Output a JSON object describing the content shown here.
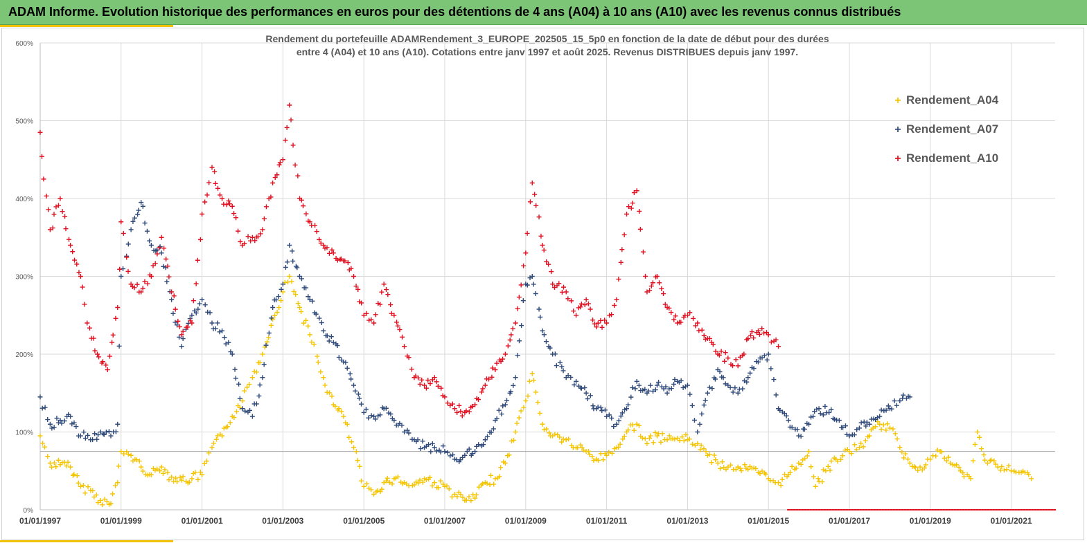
{
  "banner": {
    "title": "ADAM Informe. Evolution historique des performances en euros pour des détentions de 4 ans (A04) à 10 ans (A10) avec les revenus connus distribués"
  },
  "colors": {
    "banner": "#7cc576",
    "accent": "#f2c200",
    "A04": "#f5c400",
    "A07": "#2f4a7a",
    "A10": "#e01020",
    "grid": "#d9d9d9"
  },
  "chart_data": {
    "type": "scatter",
    "title_lines": [
      "Rendement du portefeuille ADAMRendement_3_EUROPE_202505_15_5p0  en fonction de la date de début pour des durées",
      "entre 4 (A04) et 10 ans (A10). Cotations entre janv 1997 et août 2025. Revenus DISTRIBUES depuis janv 1997."
    ],
    "xlabel": "",
    "ylabel": "",
    "x_range": [
      "1997-01-01",
      "2022-02-01"
    ],
    "ylim": [
      0,
      600
    ],
    "y_ticks": [
      "0%",
      "100%",
      "200%",
      "300%",
      "400%",
      "500%",
      "600%"
    ],
    "x_ticks": [
      "01/01/1997",
      "01/01/1999",
      "01/01/2001",
      "01/01/2003",
      "01/01/2005",
      "01/01/2007",
      "01/01/2009",
      "01/01/2011",
      "01/01/2013",
      "01/01/2015",
      "01/01/2017",
      "01/01/2019",
      "01/01/2021"
    ],
    "grid": true,
    "legend_position": "top-right",
    "marker": "+",
    "reference_line_y": 75,
    "series": [
      {
        "name": "Rendement_A04",
        "color": "#f5c400",
        "points": [
          [
            "1997-01-01",
            95
          ],
          [
            "1997-04-01",
            60
          ],
          [
            "1997-07-01",
            58
          ],
          [
            "1997-10-01",
            55
          ],
          [
            "1998-01-01",
            30
          ],
          [
            "1998-04-01",
            25
          ],
          [
            "1998-07-01",
            12
          ],
          [
            "1998-10-01",
            8
          ],
          [
            "1998-12-01",
            35
          ],
          [
            "1999-01-01",
            75
          ],
          [
            "1999-04-01",
            70
          ],
          [
            "1999-07-01",
            55
          ],
          [
            "1999-10-01",
            45
          ],
          [
            "2000-01-01",
            55
          ],
          [
            "2000-04-01",
            42
          ],
          [
            "2000-07-01",
            38
          ],
          [
            "2000-10-01",
            40
          ],
          [
            "2001-01-01",
            45
          ],
          [
            "2001-04-01",
            80
          ],
          [
            "2001-07-01",
            95
          ],
          [
            "2001-10-01",
            120
          ],
          [
            "2002-01-01",
            140
          ],
          [
            "2002-04-01",
            170
          ],
          [
            "2002-07-01",
            200
          ],
          [
            "2002-10-01",
            245
          ],
          [
            "2003-01-01",
            280
          ],
          [
            "2003-03-01",
            300
          ],
          [
            "2003-06-01",
            260
          ],
          [
            "2003-09-01",
            225
          ],
          [
            "2004-01-01",
            170
          ],
          [
            "2004-04-01",
            135
          ],
          [
            "2004-07-01",
            120
          ],
          [
            "2004-10-01",
            80
          ],
          [
            "2005-01-01",
            30
          ],
          [
            "2005-04-01",
            20
          ],
          [
            "2005-07-01",
            35
          ],
          [
            "2005-10-01",
            40
          ],
          [
            "2006-01-01",
            35
          ],
          [
            "2006-04-01",
            32
          ],
          [
            "2006-07-01",
            40
          ],
          [
            "2006-10-01",
            35
          ],
          [
            "2007-01-01",
            30
          ],
          [
            "2007-04-01",
            20
          ],
          [
            "2007-07-01",
            12
          ],
          [
            "2007-10-01",
            15
          ],
          [
            "2008-01-01",
            35
          ],
          [
            "2008-04-01",
            40
          ],
          [
            "2008-07-01",
            60
          ],
          [
            "2008-10-01",
            100
          ],
          [
            "2009-01-01",
            140
          ],
          [
            "2009-03-01",
            175
          ],
          [
            "2009-06-01",
            110
          ],
          [
            "2009-09-01",
            95
          ],
          [
            "2010-01-01",
            90
          ],
          [
            "2010-04-01",
            80
          ],
          [
            "2010-07-01",
            75
          ],
          [
            "2010-10-01",
            65
          ],
          [
            "2011-01-01",
            70
          ],
          [
            "2011-04-01",
            80
          ],
          [
            "2011-07-01",
            100
          ],
          [
            "2011-10-01",
            110
          ],
          [
            "2012-01-01",
            85
          ],
          [
            "2012-04-01",
            95
          ],
          [
            "2012-07-01",
            90
          ],
          [
            "2012-10-01",
            92
          ],
          [
            "2013-01-01",
            90
          ],
          [
            "2013-04-01",
            85
          ],
          [
            "2013-07-01",
            70
          ],
          [
            "2013-10-01",
            60
          ],
          [
            "2014-01-01",
            55
          ],
          [
            "2014-04-01",
            55
          ],
          [
            "2014-07-01",
            52
          ],
          [
            "2014-10-01",
            48
          ],
          [
            "2015-01-01",
            40
          ],
          [
            "2015-04-01",
            35
          ],
          [
            "2015-07-01",
            45
          ],
          [
            "2015-10-01",
            60
          ],
          [
            "2016-01-01",
            75
          ],
          [
            "2016-03-01",
            30
          ],
          [
            "2016-06-01",
            50
          ],
          [
            "2016-09-01",
            65
          ],
          [
            "2017-01-01",
            75
          ],
          [
            "2017-04-01",
            80
          ],
          [
            "2017-07-01",
            95
          ],
          [
            "2017-10-01",
            110
          ],
          [
            "2018-01-01",
            105
          ],
          [
            "2018-04-01",
            80
          ],
          [
            "2018-07-01",
            60
          ],
          [
            "2018-10-01",
            55
          ],
          [
            "2019-01-01",
            65
          ],
          [
            "2019-04-01",
            75
          ],
          [
            "2019-07-01",
            60
          ],
          [
            "2019-10-01",
            50
          ],
          [
            "2020-01-01",
            40
          ],
          [
            "2020-03-01",
            100
          ],
          [
            "2020-06-01",
            60
          ],
          [
            "2020-09-01",
            55
          ],
          [
            "2021-01-01",
            50
          ],
          [
            "2021-04-01",
            48
          ],
          [
            "2021-07-01",
            40
          ]
        ]
      },
      {
        "name": "Rendement_A07",
        "color": "#2f4a7a",
        "points": [
          [
            "1997-01-01",
            145
          ],
          [
            "1997-04-01",
            110
          ],
          [
            "1997-07-01",
            115
          ],
          [
            "1997-10-01",
            120
          ],
          [
            "1998-01-01",
            95
          ],
          [
            "1998-04-01",
            90
          ],
          [
            "1998-07-01",
            100
          ],
          [
            "1998-10-01",
            95
          ],
          [
            "1998-12-01",
            110
          ],
          [
            "1999-01-01",
            300
          ],
          [
            "1999-04-01",
            360
          ],
          [
            "1999-07-01",
            395
          ],
          [
            "1999-10-01",
            340
          ],
          [
            "2000-01-01",
            330
          ],
          [
            "2000-04-01",
            270
          ],
          [
            "2000-07-01",
            210
          ],
          [
            "2000-10-01",
            250
          ],
          [
            "2001-01-01",
            270
          ],
          [
            "2001-04-01",
            240
          ],
          [
            "2001-07-01",
            230
          ],
          [
            "2001-10-01",
            200
          ],
          [
            "2002-01-01",
            130
          ],
          [
            "2002-04-01",
            120
          ],
          [
            "2002-07-01",
            170
          ],
          [
            "2002-10-01",
            260
          ],
          [
            "2003-01-01",
            290
          ],
          [
            "2003-03-01",
            340
          ],
          [
            "2003-06-01",
            300
          ],
          [
            "2003-09-01",
            270
          ],
          [
            "2004-01-01",
            230
          ],
          [
            "2004-04-01",
            215
          ],
          [
            "2004-07-01",
            190
          ],
          [
            "2004-10-01",
            160
          ],
          [
            "2005-01-01",
            125
          ],
          [
            "2005-04-01",
            120
          ],
          [
            "2005-07-01",
            130
          ],
          [
            "2005-10-01",
            115
          ],
          [
            "2006-01-01",
            100
          ],
          [
            "2006-04-01",
            90
          ],
          [
            "2006-07-01",
            80
          ],
          [
            "2006-10-01",
            80
          ],
          [
            "2007-01-01",
            75
          ],
          [
            "2007-04-01",
            65
          ],
          [
            "2007-07-01",
            70
          ],
          [
            "2007-10-01",
            75
          ],
          [
            "2008-01-01",
            90
          ],
          [
            "2008-04-01",
            115
          ],
          [
            "2008-07-01",
            135
          ],
          [
            "2008-10-01",
            170
          ],
          [
            "2009-01-01",
            290
          ],
          [
            "2009-03-01",
            300
          ],
          [
            "2009-06-01",
            230
          ],
          [
            "2009-09-01",
            200
          ],
          [
            "2010-01-01",
            170
          ],
          [
            "2010-04-01",
            165
          ],
          [
            "2010-07-01",
            150
          ],
          [
            "2010-10-01",
            130
          ],
          [
            "2011-01-01",
            120
          ],
          [
            "2011-04-01",
            110
          ],
          [
            "2011-07-01",
            130
          ],
          [
            "2011-10-01",
            165
          ],
          [
            "2012-01-01",
            150
          ],
          [
            "2012-04-01",
            160
          ],
          [
            "2012-07-01",
            150
          ],
          [
            "2012-10-01",
            165
          ],
          [
            "2013-01-01",
            160
          ],
          [
            "2013-04-01",
            100
          ],
          [
            "2013-07-01",
            150
          ],
          [
            "2013-10-01",
            180
          ],
          [
            "2014-01-01",
            160
          ],
          [
            "2014-04-01",
            150
          ],
          [
            "2014-07-01",
            170
          ],
          [
            "2014-10-01",
            190
          ],
          [
            "2015-01-01",
            200
          ],
          [
            "2015-04-01",
            130
          ],
          [
            "2015-07-01",
            115
          ],
          [
            "2015-10-01",
            95
          ],
          [
            "2016-01-01",
            110
          ],
          [
            "2016-04-01",
            130
          ],
          [
            "2016-07-01",
            125
          ],
          [
            "2016-10-01",
            115
          ],
          [
            "2017-01-01",
            95
          ],
          [
            "2017-04-01",
            105
          ],
          [
            "2017-07-01",
            110
          ],
          [
            "2017-10-01",
            120
          ],
          [
            "2018-01-01",
            130
          ],
          [
            "2018-04-01",
            140
          ],
          [
            "2018-07-01",
            145
          ]
        ]
      },
      {
        "name": "Rendement_A10",
        "color": "#e01020",
        "points": [
          [
            "1997-01-01",
            485
          ],
          [
            "1997-02-01",
            425
          ],
          [
            "1997-04-01",
            360
          ],
          [
            "1997-07-01",
            400
          ],
          [
            "1997-10-01",
            340
          ],
          [
            "1998-01-01",
            300
          ],
          [
            "1998-03-01",
            240
          ],
          [
            "1998-06-01",
            200
          ],
          [
            "1998-09-01",
            180
          ],
          [
            "1998-12-01",
            260
          ],
          [
            "1999-01-01",
            370
          ],
          [
            "1999-04-01",
            290
          ],
          [
            "1999-07-01",
            280
          ],
          [
            "1999-10-01",
            300
          ],
          [
            "2000-01-01",
            350
          ],
          [
            "2000-04-01",
            280
          ],
          [
            "2000-07-01",
            225
          ],
          [
            "2000-10-01",
            240
          ],
          [
            "2001-01-01",
            380
          ],
          [
            "2001-04-01",
            440
          ],
          [
            "2001-07-01",
            400
          ],
          [
            "2001-10-01",
            390
          ],
          [
            "2002-01-01",
            340
          ],
          [
            "2002-04-01",
            350
          ],
          [
            "2002-07-01",
            360
          ],
          [
            "2002-10-01",
            420
          ],
          [
            "2003-01-01",
            450
          ],
          [
            "2003-03-01",
            520
          ],
          [
            "2003-06-01",
            400
          ],
          [
            "2003-09-01",
            370
          ],
          [
            "2004-01-01",
            340
          ],
          [
            "2004-04-01",
            330
          ],
          [
            "2004-07-01",
            320
          ],
          [
            "2004-10-01",
            300
          ],
          [
            "2005-01-01",
            250
          ],
          [
            "2005-04-01",
            240
          ],
          [
            "2005-07-01",
            290
          ],
          [
            "2005-10-01",
            250
          ],
          [
            "2006-01-01",
            210
          ],
          [
            "2006-04-01",
            170
          ],
          [
            "2006-07-01",
            160
          ],
          [
            "2006-10-01",
            170
          ],
          [
            "2007-01-01",
            145
          ],
          [
            "2007-04-01",
            130
          ],
          [
            "2007-07-01",
            125
          ],
          [
            "2007-10-01",
            135
          ],
          [
            "2008-01-01",
            160
          ],
          [
            "2008-04-01",
            180
          ],
          [
            "2008-07-01",
            200
          ],
          [
            "2008-10-01",
            240
          ],
          [
            "2009-01-01",
            330
          ],
          [
            "2009-03-01",
            420
          ],
          [
            "2009-06-01",
            340
          ],
          [
            "2009-09-01",
            290
          ],
          [
            "2010-01-01",
            280
          ],
          [
            "2010-04-01",
            250
          ],
          [
            "2010-07-01",
            270
          ],
          [
            "2010-10-01",
            235
          ],
          [
            "2011-01-01",
            240
          ],
          [
            "2011-04-01",
            270
          ],
          [
            "2011-07-01",
            380
          ],
          [
            "2011-10-01",
            410
          ],
          [
            "2012-01-01",
            280
          ],
          [
            "2012-04-01",
            300
          ],
          [
            "2012-07-01",
            260
          ],
          [
            "2012-10-01",
            240
          ],
          [
            "2013-01-01",
            250
          ],
          [
            "2013-04-01",
            240
          ],
          [
            "2013-07-01",
            220
          ],
          [
            "2013-10-01",
            200
          ],
          [
            "2014-01-01",
            195
          ],
          [
            "2014-04-01",
            185
          ],
          [
            "2014-07-01",
            220
          ],
          [
            "2014-10-01",
            230
          ],
          [
            "2015-01-01",
            225
          ],
          [
            "2015-04-01",
            210
          ]
        ]
      }
    ]
  }
}
